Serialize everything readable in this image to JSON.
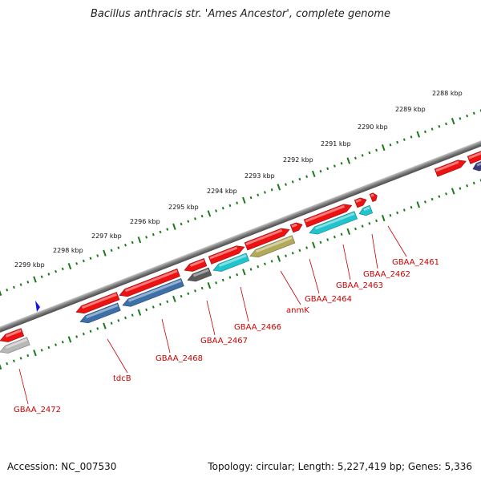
{
  "map": {
    "title": "Bacillus anthracis str. 'Ames Ancestor', complete genome",
    "accession": "Accession: NC_007530",
    "genome_stats": "Topology: circular; Length: 5,227,419 bp; Genes: 5,336"
  },
  "colors": {
    "backbone": "#7a7a7a",
    "tick": "#1a7a1a",
    "label": "#cc0000",
    "gene_red": "#ee1111",
    "gene_blue": "#3d6fa8",
    "gene_cyan": "#1fc4cc",
    "gene_olive": "#b2aa5a",
    "gene_grey": "#5a5a5a",
    "gene_lightgrey": "#b8b8b8",
    "gene_navy": "#3a3a7a",
    "marker": "#1010ee"
  },
  "kbp_labels": [
    "2288 kbp",
    "2289 kbp",
    "2290 kbp",
    "2291 kbp",
    "2292 kbp",
    "2293 kbp",
    "2294 kbp",
    "2295 kbp",
    "2296 kbp",
    "2297 kbp",
    "2298 kbp",
    "2299 kbp"
  ],
  "gene_labels": [
    "GBAA_2461",
    "GBAA_2462",
    "GBAA_2463",
    "GBAA_2464",
    "anmK",
    "GBAA_2466",
    "GBAA_2467",
    "GBAA_2468",
    "tdcB",
    "GBAA_2472"
  ]
}
